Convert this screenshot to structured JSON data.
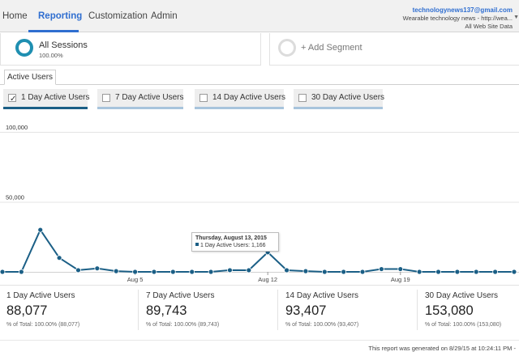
{
  "nav": {
    "items": [
      "Home",
      "Reporting",
      "Customization",
      "Admin"
    ],
    "active": "Reporting"
  },
  "account": {
    "email": "technologynews137@gmail.com",
    "property": "Wearable technology news - http://wea...",
    "view": "All Web Site Data"
  },
  "segments": {
    "active_name": "All Sessions",
    "active_pct": "100.00%",
    "add_label": "+ Add Segment"
  },
  "tab": {
    "label": "Active Users"
  },
  "toggles": [
    {
      "label": "1 Day Active Users",
      "checked": true,
      "underline": "#1b5f86"
    },
    {
      "label": "7 Day Active Users",
      "checked": false,
      "underline": "#a8c4dc"
    },
    {
      "label": "14 Day Active Users",
      "checked": false,
      "underline": "#a8c4dc"
    },
    {
      "label": "30 Day Active Users",
      "checked": false,
      "underline": "#a8c4dc"
    }
  ],
  "chart_data": {
    "type": "line",
    "yticks": [
      "100,000",
      "50,000"
    ],
    "ylim": [
      0,
      100000
    ],
    "xticks": [
      {
        "label": "Aug 5",
        "index": 7
      },
      {
        "label": "Aug 12",
        "index": 14
      },
      {
        "label": "Aug 19",
        "index": 21
      }
    ],
    "series": [
      {
        "name": "1 Day Active Users",
        "color": "#1b5f86",
        "values": [
          0,
          0,
          30000,
          10000,
          1200,
          2500,
          500,
          0,
          0,
          0,
          0,
          0,
          1200,
          1166,
          14000,
          1166,
          500,
          0,
          0,
          0,
          2000,
          2000,
          0,
          0,
          0,
          0,
          0,
          0
        ]
      }
    ],
    "grid": true
  },
  "tooltip": {
    "date": "Thursday, August 13, 2015",
    "line": "1 Day Active Users: 1,166"
  },
  "summaries": [
    {
      "title": "1 Day Active Users",
      "value": "88,077",
      "pct": "% of Total: 100.00% (88,077)"
    },
    {
      "title": "7 Day Active Users",
      "value": "89,743",
      "pct": "% of Total: 100.00% (89,743)"
    },
    {
      "title": "14 Day Active Users",
      "value": "93,407",
      "pct": "% of Total: 100.00% (93,407)"
    },
    {
      "title": "30 Day Active Users",
      "value": "153,080",
      "pct": "% of Total: 100.00% (153,080)"
    }
  ],
  "footer": "This report was generated on 8/29/15 at 10:24:11 PM -"
}
